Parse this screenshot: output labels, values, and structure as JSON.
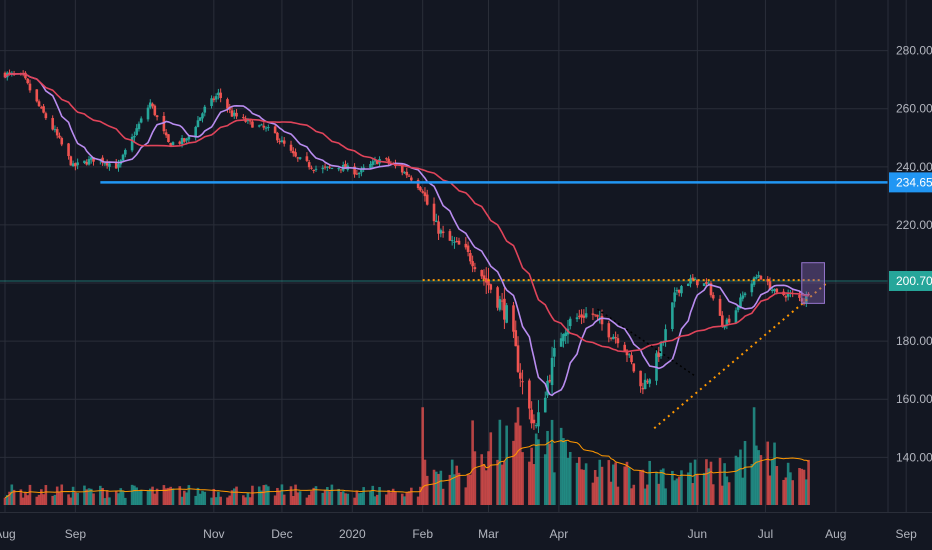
{
  "chart_data": {
    "type": "candlestick",
    "title": "",
    "colors": {
      "background": "#131722",
      "grid": "#2a2e39",
      "up": "#26a69a",
      "down": "#ef5350",
      "ma_fast": "#b98cf0",
      "ma_slow": "#e0445a",
      "support": "#2196f3",
      "resistance": "#ff9800",
      "volume_ma": "#ff9800",
      "highlight": "#7b5ea7",
      "price_line": "#26a69a",
      "axis_text": "#b2b5be"
    },
    "x_axis": {
      "tick_labels": [
        "Aug",
        "Sep",
        "Nov",
        "Dec",
        "2020",
        "Feb",
        "Mar",
        "Apr",
        "Jun",
        "Jul",
        "Aug",
        "Sep"
      ],
      "tick_day_index": [
        0,
        31,
        92,
        122,
        153,
        184,
        213,
        244,
        305,
        335,
        366,
        397
      ],
      "last_bar_day_index": 356
    },
    "y_axis": {
      "tick_labels": [
        "140.00",
        "160.00",
        "180.00",
        "200.00",
        "220.00",
        "240.00",
        "260.00",
        "280.00"
      ],
      "tick_values": [
        140,
        160,
        180,
        200,
        220,
        240,
        260,
        280
      ],
      "ylim": [
        121,
        295
      ]
    },
    "price_markers": [
      {
        "label": "234.65",
        "value": 234.65,
        "color": "#2196f3"
      },
      {
        "label": "200.70",
        "value": 200.7,
        "color": "#26a69a"
      }
    ],
    "price_path": [
      [
        0,
        272
      ],
      [
        8,
        271
      ],
      [
        14,
        262
      ],
      [
        22,
        252
      ],
      [
        30,
        240
      ],
      [
        40,
        243
      ],
      [
        50,
        240
      ],
      [
        58,
        253
      ],
      [
        64,
        262
      ],
      [
        72,
        248
      ],
      [
        80,
        249
      ],
      [
        88,
        260
      ],
      [
        94,
        265
      ],
      [
        100,
        258
      ],
      [
        108,
        255
      ],
      [
        118,
        252
      ],
      [
        128,
        243
      ],
      [
        138,
        239
      ],
      [
        148,
        240
      ],
      [
        156,
        238
      ],
      [
        166,
        243
      ],
      [
        178,
        237
      ],
      [
        184,
        232
      ],
      [
        188,
        222
      ],
      [
        194,
        215
      ],
      [
        202,
        212
      ],
      [
        210,
        203
      ],
      [
        216,
        196
      ],
      [
        222,
        188
      ],
      [
        226,
        172
      ],
      [
        230,
        158
      ],
      [
        234,
        150
      ],
      [
        238,
        163
      ],
      [
        242,
        175
      ],
      [
        246,
        185
      ],
      [
        252,
        188
      ],
      [
        258,
        190
      ],
      [
        266,
        183
      ],
      [
        272,
        180
      ],
      [
        276,
        172
      ],
      [
        280,
        164
      ],
      [
        284,
        168
      ],
      [
        290,
        180
      ],
      [
        296,
        198
      ],
      [
        302,
        201
      ],
      [
        310,
        199
      ],
      [
        316,
        186
      ],
      [
        320,
        188
      ],
      [
        326,
        197
      ],
      [
        332,
        203
      ],
      [
        340,
        196
      ],
      [
        346,
        196
      ],
      [
        352,
        194
      ],
      [
        356,
        200
      ]
    ],
    "support_line": {
      "value": 234.65,
      "start_day": 42,
      "end_day": 397
    },
    "resistance_line": {
      "value": 201,
      "start_day": 184,
      "end_day": 360,
      "style": "dotted"
    },
    "ascending_trendline": {
      "start": [
        286,
        150
      ],
      "end": [
        362,
        200
      ],
      "style": "dotted"
    },
    "descending_trendline": {
      "start": [
        261,
        191
      ],
      "end": [
        304,
        168
      ],
      "style": "dotted"
    },
    "highlight_box": {
      "start_day": 351,
      "end_day": 361,
      "low": 193,
      "high": 207
    }
  }
}
